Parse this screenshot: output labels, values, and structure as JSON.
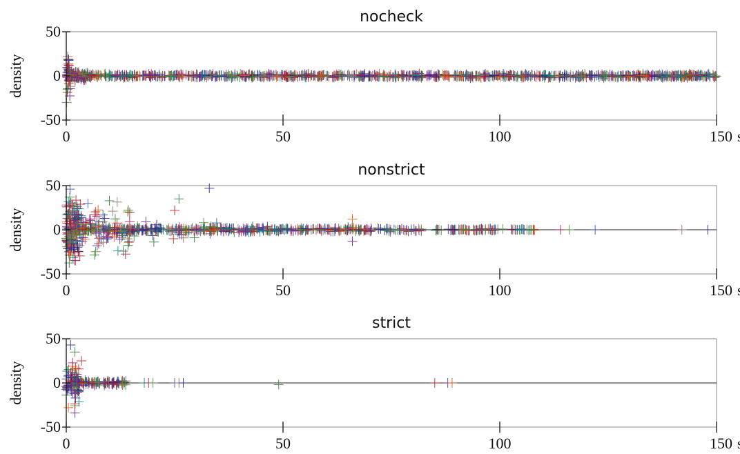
{
  "chart_data": [
    {
      "type": "scatter",
      "title": "nocheck",
      "ylabel": "density",
      "x_unit": "s",
      "xlim": [
        0,
        150
      ],
      "ylim": [
        -50,
        50
      ],
      "x_ticks": [
        0,
        50,
        100,
        150
      ],
      "y_ticks": [
        -50,
        0,
        50
      ],
      "marker": "+",
      "colors": [
        "#1a237e",
        "#2e7d32",
        "#b71c1c",
        "#6a1b9a",
        "#e65100",
        "#00838f",
        "#ad1457",
        "#558b2f",
        "#3949ab",
        "#8d6e63"
      ],
      "clusters": [
        {
          "x_range": [
            0,
            1
          ],
          "y_spread": 40,
          "count": 40
        },
        {
          "x_range": [
            1,
            5
          ],
          "y_spread": 7,
          "count": 90
        },
        {
          "x_range": [
            5,
            150
          ],
          "y_spread": 3,
          "count": 900
        }
      ]
    },
    {
      "type": "scatter",
      "title": "nonstrict",
      "ylabel": "density",
      "x_unit": "s",
      "xlim": [
        0,
        150
      ],
      "ylim": [
        -50,
        50
      ],
      "x_ticks": [
        0,
        50,
        100,
        150
      ],
      "y_ticks": [
        -50,
        0,
        50
      ],
      "marker": "+",
      "colors": [
        "#1a237e",
        "#2e7d32",
        "#b71c1c",
        "#6a1b9a",
        "#e65100",
        "#00838f",
        "#ad1457",
        "#558b2f",
        "#3949ab",
        "#8d6e63"
      ],
      "clusters": [
        {
          "x_range": [
            0,
            3
          ],
          "y_spread": 50,
          "count": 160
        },
        {
          "x_range": [
            3,
            15
          ],
          "y_spread": 40,
          "count": 90
        },
        {
          "x_range": [
            15,
            35
          ],
          "y_spread": 20,
          "count": 30
        },
        {
          "x_range": [
            3,
            50
          ],
          "y_spread": 4,
          "count": 260
        },
        {
          "x_range": [
            50,
            82
          ],
          "y_spread": 3,
          "count": 130
        },
        {
          "x_range": [
            85,
            108
          ],
          "y_spread": 2,
          "count": 80
        }
      ],
      "points": [
        {
          "x": 33,
          "y": 47
        },
        {
          "x": 26,
          "y": 35
        },
        {
          "x": 25,
          "y": 22
        },
        {
          "x": 66,
          "y": -13
        },
        {
          "x": 66,
          "y": 12
        },
        {
          "x": 65,
          "y": 3
        },
        {
          "x": 114,
          "y": 0
        },
        {
          "x": 116,
          "y": 0
        },
        {
          "x": 122,
          "y": 0
        },
        {
          "x": 142,
          "y": 0
        },
        {
          "x": 148,
          "y": 0
        },
        {
          "x": 107,
          "y": 0
        }
      ]
    },
    {
      "type": "scatter",
      "title": "strict",
      "ylabel": "density",
      "x_unit": "s",
      "xlim": [
        0,
        150
      ],
      "ylim": [
        -50,
        50
      ],
      "x_ticks": [
        0,
        50,
        100,
        150
      ],
      "y_ticks": [
        -50,
        0,
        50
      ],
      "marker": "+",
      "colors": [
        "#1a237e",
        "#2e7d32",
        "#b71c1c",
        "#6a1b9a",
        "#e65100",
        "#00838f",
        "#ad1457",
        "#558b2f",
        "#3949ab",
        "#8d6e63"
      ],
      "clusters": [
        {
          "x_range": [
            0,
            3
          ],
          "y_spread": 30,
          "count": 80
        },
        {
          "x_range": [
            1,
            14
          ],
          "y_spread": 4,
          "count": 90
        }
      ],
      "points": [
        {
          "x": 1,
          "y": 43
        },
        {
          "x": 2,
          "y": 35
        },
        {
          "x": 3.5,
          "y": 25
        },
        {
          "x": 2,
          "y": -34
        },
        {
          "x": 0.5,
          "y": -28
        },
        {
          "x": 18,
          "y": 0
        },
        {
          "x": 19,
          "y": 0
        },
        {
          "x": 20,
          "y": 0
        },
        {
          "x": 25,
          "y": 0
        },
        {
          "x": 26,
          "y": 0
        },
        {
          "x": 27,
          "y": 0
        },
        {
          "x": 49,
          "y": -2
        },
        {
          "x": 85,
          "y": 0
        },
        {
          "x": 88,
          "y": 0
        },
        {
          "x": 89,
          "y": 0
        }
      ]
    }
  ]
}
